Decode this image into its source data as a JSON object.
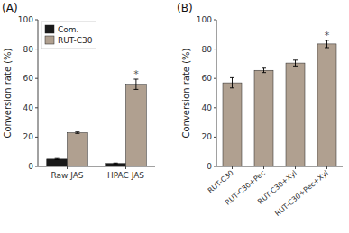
{
  "chart_data": [
    {
      "type": "bar",
      "title": "(A)",
      "categories": [
        "Raw JAS",
        "HPAC JAS"
      ],
      "series": [
        {
          "name": "Com.",
          "color": "#1a1a1a",
          "values": [
            5.0,
            2.0
          ],
          "errors": [
            0.4,
            0.3
          ]
        },
        {
          "name": "RUT-C30",
          "color": "#b0a090",
          "values": [
            23.0,
            56.0
          ],
          "errors": [
            0.5,
            3.5
          ]
        }
      ],
      "ylabel": "Conversion rate (%)",
      "ylim": [
        0,
        100
      ],
      "yticks": [
        0,
        20,
        40,
        60,
        80,
        100
      ],
      "legend": "upper left",
      "grid": false,
      "annotations": [
        {
          "text": "*",
          "category": "HPAC JAS",
          "series": "RUT-C30"
        }
      ]
    },
    {
      "type": "bar",
      "title": "(B)",
      "categories": [
        "RUT-C30",
        "RUT-C30+Pec",
        "RUT-C30+Xyl",
        "RUT-C30+Pec+Xyl"
      ],
      "values": [
        57.0,
        65.5,
        70.5,
        83.5
      ],
      "errors": [
        3.5,
        1.5,
        2.0,
        2.5
      ],
      "color": "#b0a090",
      "ylabel": "Conversion rate (%)",
      "ylim": [
        0,
        100
      ],
      "yticks": [
        0,
        20,
        40,
        60,
        80,
        100
      ],
      "grid": false,
      "annotations": [
        {
          "text": "*",
          "category": "RUT-C30+Pec+Xyl"
        }
      ]
    }
  ]
}
